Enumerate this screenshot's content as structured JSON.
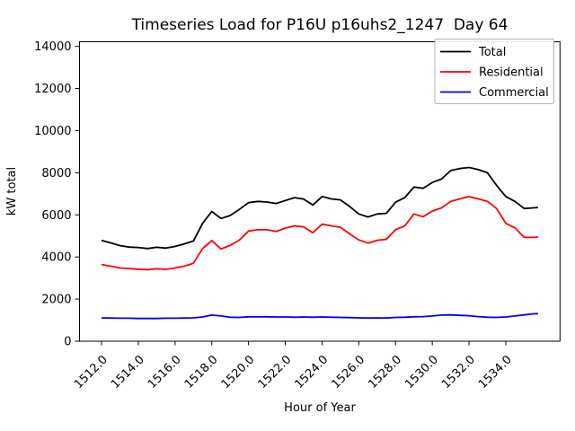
{
  "chart_data": {
    "type": "line",
    "title": "Timeseries Load for P16U p16uhs2_1247  Day 64",
    "xlabel": "Hour of Year",
    "ylabel": "kW total",
    "xlim": [
      1510.8,
      1536.95
    ],
    "ylim": [
      0,
      14220
    ],
    "grid": false,
    "legend_position": "upper right",
    "xticks": {
      "values": [
        1512,
        1514,
        1516,
        1518,
        1520,
        1522,
        1524,
        1526,
        1528,
        1530,
        1532,
        1534
      ],
      "labels": [
        "1512.0",
        "1514.0",
        "1516.0",
        "1518.0",
        "1520.0",
        "1522.0",
        "1524.0",
        "1526.0",
        "1528.0",
        "1530.0",
        "1532.0",
        "1534.0"
      ]
    },
    "yticks": {
      "values": [
        0,
        2000,
        4000,
        6000,
        8000,
        10000,
        12000,
        14000
      ],
      "labels": [
        "0",
        "2000",
        "4000",
        "6000",
        "8000",
        "10000",
        "12000",
        "14000"
      ]
    },
    "x": [
      1512.0,
      1512.5,
      1513.0,
      1513.5,
      1514.0,
      1514.5,
      1515.0,
      1515.5,
      1516.0,
      1516.5,
      1517.0,
      1517.5,
      1518.0,
      1518.5,
      1519.0,
      1519.5,
      1520.0,
      1520.5,
      1521.0,
      1521.5,
      1522.0,
      1522.5,
      1523.0,
      1523.5,
      1524.0,
      1524.5,
      1525.0,
      1525.5,
      1526.0,
      1526.5,
      1527.0,
      1527.5,
      1528.0,
      1528.5,
      1529.0,
      1529.5,
      1530.0,
      1530.5,
      1531.0,
      1531.5,
      1532.0,
      1532.5,
      1533.0,
      1533.5,
      1534.0,
      1534.5,
      1535.0,
      1535.5,
      1535.75
    ],
    "series": [
      {
        "name": "Total",
        "color": "#000000",
        "values": [
          4790,
          4670,
          4540,
          4470,
          4450,
          4400,
          4460,
          4420,
          4500,
          4620,
          4760,
          5600,
          6160,
          5830,
          5970,
          6260,
          6580,
          6640,
          6610,
          6540,
          6680,
          6820,
          6750,
          6470,
          6870,
          6760,
          6710,
          6400,
          6040,
          5900,
          6040,
          6070,
          6600,
          6820,
          7320,
          7260,
          7540,
          7700,
          8100,
          8200,
          8250,
          8150,
          8000,
          7400,
          6870,
          6640,
          6300,
          6330,
          6350
        ]
      },
      {
        "name": "Residential",
        "color": "#ff0000",
        "values": [
          3640,
          3560,
          3480,
          3450,
          3420,
          3400,
          3440,
          3410,
          3480,
          3560,
          3700,
          4400,
          4780,
          4380,
          4550,
          4800,
          5230,
          5290,
          5290,
          5210,
          5370,
          5480,
          5430,
          5150,
          5560,
          5480,
          5410,
          5100,
          4810,
          4660,
          4790,
          4840,
          5300,
          5470,
          6040,
          5910,
          6180,
          6330,
          6640,
          6760,
          6870,
          6760,
          6640,
          6300,
          5600,
          5380,
          4930,
          4930,
          4950
        ]
      },
      {
        "name": "Commercial",
        "color": "#0000ff",
        "values": [
          1110,
          1100,
          1090,
          1090,
          1080,
          1080,
          1080,
          1090,
          1090,
          1100,
          1110,
          1150,
          1240,
          1200,
          1140,
          1130,
          1160,
          1160,
          1160,
          1150,
          1150,
          1140,
          1150,
          1140,
          1150,
          1140,
          1130,
          1120,
          1110,
          1100,
          1110,
          1100,
          1130,
          1140,
          1160,
          1170,
          1200,
          1240,
          1250,
          1230,
          1210,
          1170,
          1140,
          1130,
          1150,
          1200,
          1250,
          1300,
          1310
        ]
      }
    ]
  }
}
